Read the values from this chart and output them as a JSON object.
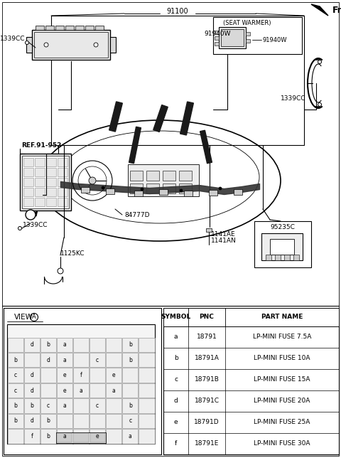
{
  "bg_color": "#ffffff",
  "label_91100": "91100",
  "label_fr": "Fr.",
  "label_1339CC_tl": "1339CC",
  "label_1339CC_tr": "1339CC",
  "label_1339CC_ml": "1339CC",
  "label_91940W_1": "91940W",
  "label_91940W_2": "91940W",
  "label_seat_warmer": "(SEAT WARMER)",
  "label_ref": "REF.91-952",
  "label_84777D": "84777D",
  "label_1125KC": "1125KC",
  "label_1141AE": "1141AE",
  "label_1141AN": "1141AN",
  "label_95235C": "95235C",
  "label_view_A": "VIEW",
  "table_headers": [
    "SYMBOL",
    "PNC",
    "PART NAME"
  ],
  "table_rows": [
    [
      "a",
      "18791",
      "LP-MINI FUSE 7.5A"
    ],
    [
      "b",
      "18791A",
      "LP-MINI FUSE 10A"
    ],
    [
      "c",
      "18791B",
      "LP-MINI FUSE 15A"
    ],
    [
      "d",
      "18791C",
      "LP-MINI FUSE 20A"
    ],
    [
      "e",
      "18791D",
      "LP-MINI FUSE 25A"
    ],
    [
      "f",
      "18791E",
      "LP-MINI FUSE 30A"
    ]
  ],
  "grid_labels": [
    [
      "",
      "d",
      "b",
      "a",
      "",
      "b"
    ],
    [
      "b",
      "d",
      "a",
      "c",
      "b",
      ""
    ],
    [
      "c",
      "d",
      "e",
      "f",
      "e",
      ""
    ],
    [
      "c",
      "d",
      "e",
      "a",
      "a",
      ""
    ],
    [
      "b",
      "b",
      "c",
      "a",
      "c",
      "b"
    ],
    [
      "b",
      "d",
      "b",
      "",
      "",
      "c"
    ],
    [
      "",
      "f",
      "b",
      "a",
      "e",
      "a"
    ]
  ]
}
